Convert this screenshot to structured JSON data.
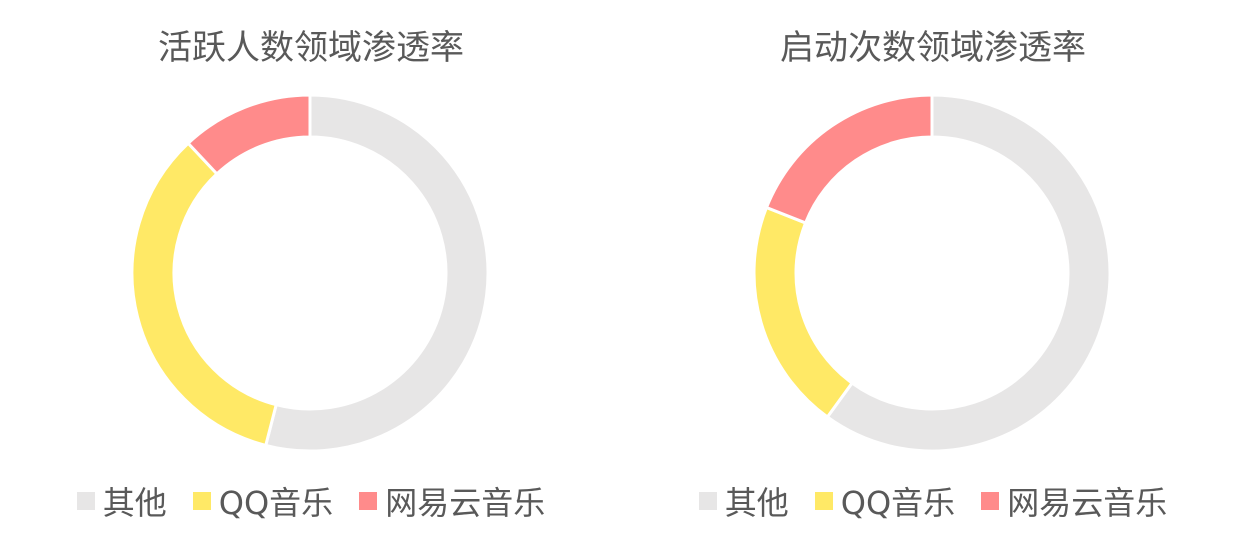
{
  "chart_data": [
    {
      "type": "pie",
      "title": "活跃人数领域渗透率",
      "donut": true,
      "categories": [
        "其他",
        "QQ音乐",
        "网易云音乐"
      ],
      "values": [
        54,
        34,
        12
      ],
      "colors": [
        "#E7E6E6",
        "#FFE966",
        "#FF8B8B"
      ],
      "legend_position": "bottom"
    },
    {
      "type": "pie",
      "title": "启动次数领域渗透率",
      "donut": true,
      "categories": [
        "其他",
        "QQ音乐",
        "网易云音乐"
      ],
      "values": [
        60,
        21,
        19
      ],
      "colors": [
        "#E7E6E6",
        "#FFE966",
        "#FF8B8B"
      ],
      "legend_position": "bottom"
    }
  ]
}
